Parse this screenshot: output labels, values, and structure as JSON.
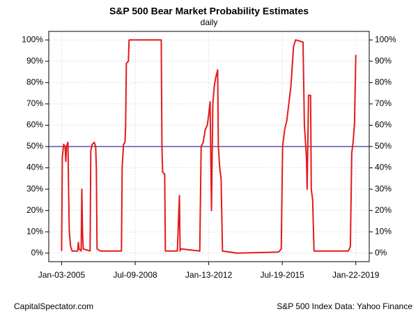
{
  "chart_data": {
    "type": "line",
    "title": "S&P 500 Bear Market Probability Estimates",
    "subtitle": "daily",
    "footer_left": "CapitalSpectator.com",
    "footer_right": "S&P 500 Index Data: Yahoo Finance",
    "color": "#e41a1c",
    "grid": true,
    "reference_line": {
      "value": 50,
      "color": "#00008b"
    },
    "xlim": [
      "2004-05-24",
      "2019-09-13"
    ],
    "xticks": [
      {
        "value": "2005-01-03",
        "label": "Jan-03-2005"
      },
      {
        "value": "2008-07-09",
        "label": "Jul-09-2008"
      },
      {
        "value": "2012-01-13",
        "label": "Jan-13-2012"
      },
      {
        "value": "2015-07-19",
        "label": "Jul-19-2015"
      },
      {
        "value": "2019-01-22",
        "label": "Jan-22-2019"
      }
    ],
    "ylim": [
      -4,
      104
    ],
    "yticks": [
      {
        "value": 0,
        "label": "0%"
      },
      {
        "value": 10,
        "label": "10%"
      },
      {
        "value": 20,
        "label": "20%"
      },
      {
        "value": 30,
        "label": "30%"
      },
      {
        "value": 40,
        "label": "40%"
      },
      {
        "value": 50,
        "label": "50%"
      },
      {
        "value": 60,
        "label": "60%"
      },
      {
        "value": 70,
        "label": "70%"
      },
      {
        "value": 80,
        "label": "80%"
      },
      {
        "value": 90,
        "label": "90%"
      },
      {
        "value": 100,
        "label": "100%"
      }
    ],
    "x": [
      "2005-01-03",
      "2005-01-15",
      "2005-02-08",
      "2005-03-05",
      "2005-03-17",
      "2005-03-29",
      "2005-04-23",
      "2005-05-05",
      "2005-05-17",
      "2005-06-10",
      "2005-07-05",
      "2005-10-10",
      "2005-10-22",
      "2005-11-03",
      "2005-12-10",
      "2005-12-22",
      "2006-01-03",
      "2006-01-15",
      "2006-05-15",
      "2006-05-27",
      "2006-06-20",
      "2006-07-26",
      "2006-08-20",
      "2006-09-01",
      "2006-09-13",
      "2006-11-13",
      "2007-11-13",
      "2007-11-25",
      "2007-12-19",
      "2008-01-13",
      "2008-01-25",
      "2008-02-06",
      "2008-03-13",
      "2008-03-25",
      "2009-10-07",
      "2009-10-19",
      "2009-10-31",
      "2009-12-06",
      "2009-12-18",
      "2010-07-15",
      "2010-08-20",
      "2010-09-01",
      "2010-09-13",
      "2011-08-10",
      "2011-09-03",
      "2011-10-09",
      "2011-11-14",
      "2011-12-20",
      "2012-01-13",
      "2012-02-06",
      "2012-03-01",
      "2012-03-25",
      "2012-04-18",
      "2012-05-12",
      "2012-06-17",
      "2012-06-29",
      "2012-07-23",
      "2012-08-16",
      "2012-09-09",
      "2013-05-15",
      "2015-05-15",
      "2015-07-01",
      "2015-07-25",
      "2015-08-30",
      "2015-10-05",
      "2015-12-16",
      "2016-02-01",
      "2016-03-08",
      "2016-07-15",
      "2016-08-08",
      "2016-09-13",
      "2016-09-25",
      "2016-10-19",
      "2016-11-24",
      "2016-12-06",
      "2016-12-30",
      "2017-01-23",
      "2018-09-13",
      "2018-10-19",
      "2018-11-12",
      "2018-12-06",
      "2018-12-30",
      "2019-01-22"
    ],
    "values": [
      1,
      45,
      51,
      50,
      43,
      50,
      52,
      30,
      10,
      3,
      1,
      1,
      5,
      2,
      1,
      30,
      10,
      2,
      1,
      48,
      51,
      52,
      50,
      40,
      2,
      1,
      1,
      40,
      51,
      52,
      60,
      89,
      90,
      100,
      100,
      50,
      38,
      37,
      1,
      1,
      27,
      1,
      2,
      1,
      50,
      52,
      58,
      60,
      65,
      71,
      20,
      70,
      78,
      82,
      86,
      50,
      40,
      35,
      1,
      0,
      0.5,
      2,
      50,
      58,
      62,
      78,
      97,
      100,
      99,
      60,
      45,
      30,
      74,
      74,
      30,
      25,
      1,
      1,
      3,
      47,
      52,
      61,
      93
    ]
  }
}
